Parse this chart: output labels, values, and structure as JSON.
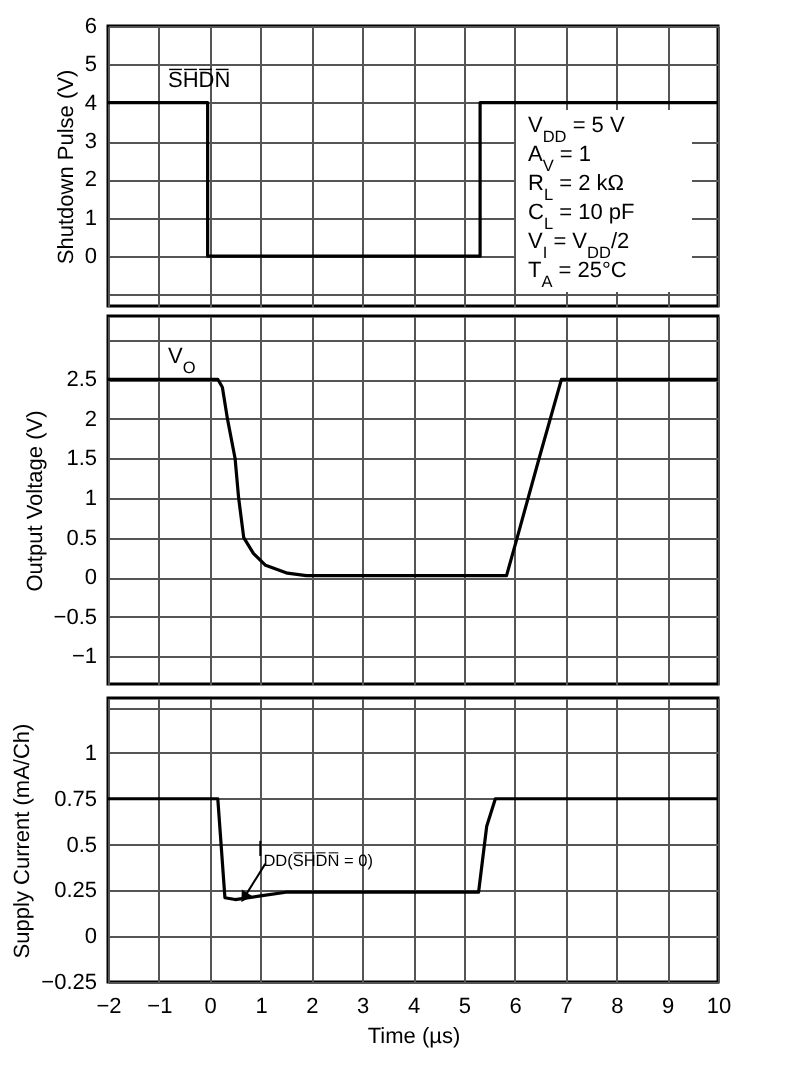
{
  "chart_data": [
    {
      "type": "line",
      "ylabel": "Shutdown Pulse (V)",
      "xlim": [
        -2,
        10
      ],
      "xticks": [
        -2,
        -1,
        0,
        1,
        2,
        3,
        4,
        5,
        6,
        7,
        8,
        9,
        10
      ],
      "ylim": [
        -1.3,
        6
      ],
      "yticks": [
        {
          "value": -1,
          "label": null
        },
        0,
        1,
        2,
        3,
        4,
        5,
        6
      ],
      "grid": true,
      "tick_labels": "y",
      "series": [
        {
          "name": "S̅H̅D̅N̅",
          "color": "#000000",
          "x": [
            -2,
            -0.04,
            -0.04,
            5.32,
            5.32,
            10
          ],
          "values": [
            4,
            4,
            0,
            0,
            4,
            4
          ]
        }
      ],
      "annotations": [
        "V$_{DD}$ = 5 V",
        "A$_{V}$ = 1",
        "R$_{L}$ = 2 kΩ",
        "C$_{L}$ = 10 pF",
        "V$_{I}$ = V$_{DD}$/2",
        "T$_{A}$ = 25°C"
      ]
    },
    {
      "type": "line",
      "ylabel": "Output  Voltage (V)",
      "xlim": [
        -2,
        10
      ],
      "xticks": [
        -2,
        -1,
        0,
        1,
        2,
        3,
        4,
        5,
        6,
        7,
        8,
        9,
        10
      ],
      "ylim": [
        -1.35,
        3.3
      ],
      "yticks": [
        -1,
        -0.5,
        0,
        0.5,
        1,
        1.5,
        2,
        2.5,
        {
          "value": 3,
          "label": null
        }
      ],
      "grid": true,
      "tick_labels": "y",
      "series": [
        {
          "name": "V$_{O}$",
          "color": "#000000",
          "x": [
            -2,
            0.16,
            0.25,
            0.35,
            0.5,
            0.57,
            0.67,
            0.86,
            1.1,
            1.53,
            1.9,
            5.84,
            6.05,
            6.48,
            6.92,
            10
          ],
          "values": [
            2.5,
            2.5,
            2.4,
            2.0,
            1.5,
            1.0,
            0.5,
            0.3,
            0.15,
            0.05,
            0.02,
            0.02,
            0.5,
            1.5,
            2.5,
            2.5
          ]
        }
      ]
    },
    {
      "type": "line",
      "ylabel": "Supply Current (mA/Ch)",
      "xlabel": "Time (µs)",
      "xlim": [
        -2,
        10
      ],
      "xticks": [
        -2,
        -1,
        0,
        1,
        2,
        3,
        4,
        5,
        6,
        7,
        8,
        9,
        10
      ],
      "ylim": [
        -0.25,
        1.3
      ],
      "yticks": [
        -0.25,
        0,
        0.25,
        0.5,
        0.75,
        1,
        {
          "value": 1.25,
          "label": null
        }
      ],
      "grid": true,
      "series": [
        {
          "color": "#000000",
          "x": [
            -2,
            0.16,
            0.3,
            0.5,
            1.0,
            1.5,
            5.29,
            5.45,
            5.62,
            10
          ],
          "values": [
            0.75,
            0.75,
            0.21,
            0.2,
            0.22,
            0.24,
            0.24,
            0.6,
            0.75,
            0.75
          ]
        }
      ],
      "annotations": [
        {
          "text": "I$_{DD(S̅H̅D̅N̅ = 0)}$",
          "x": 0.7,
          "y": 0.22
        }
      ]
    }
  ]
}
